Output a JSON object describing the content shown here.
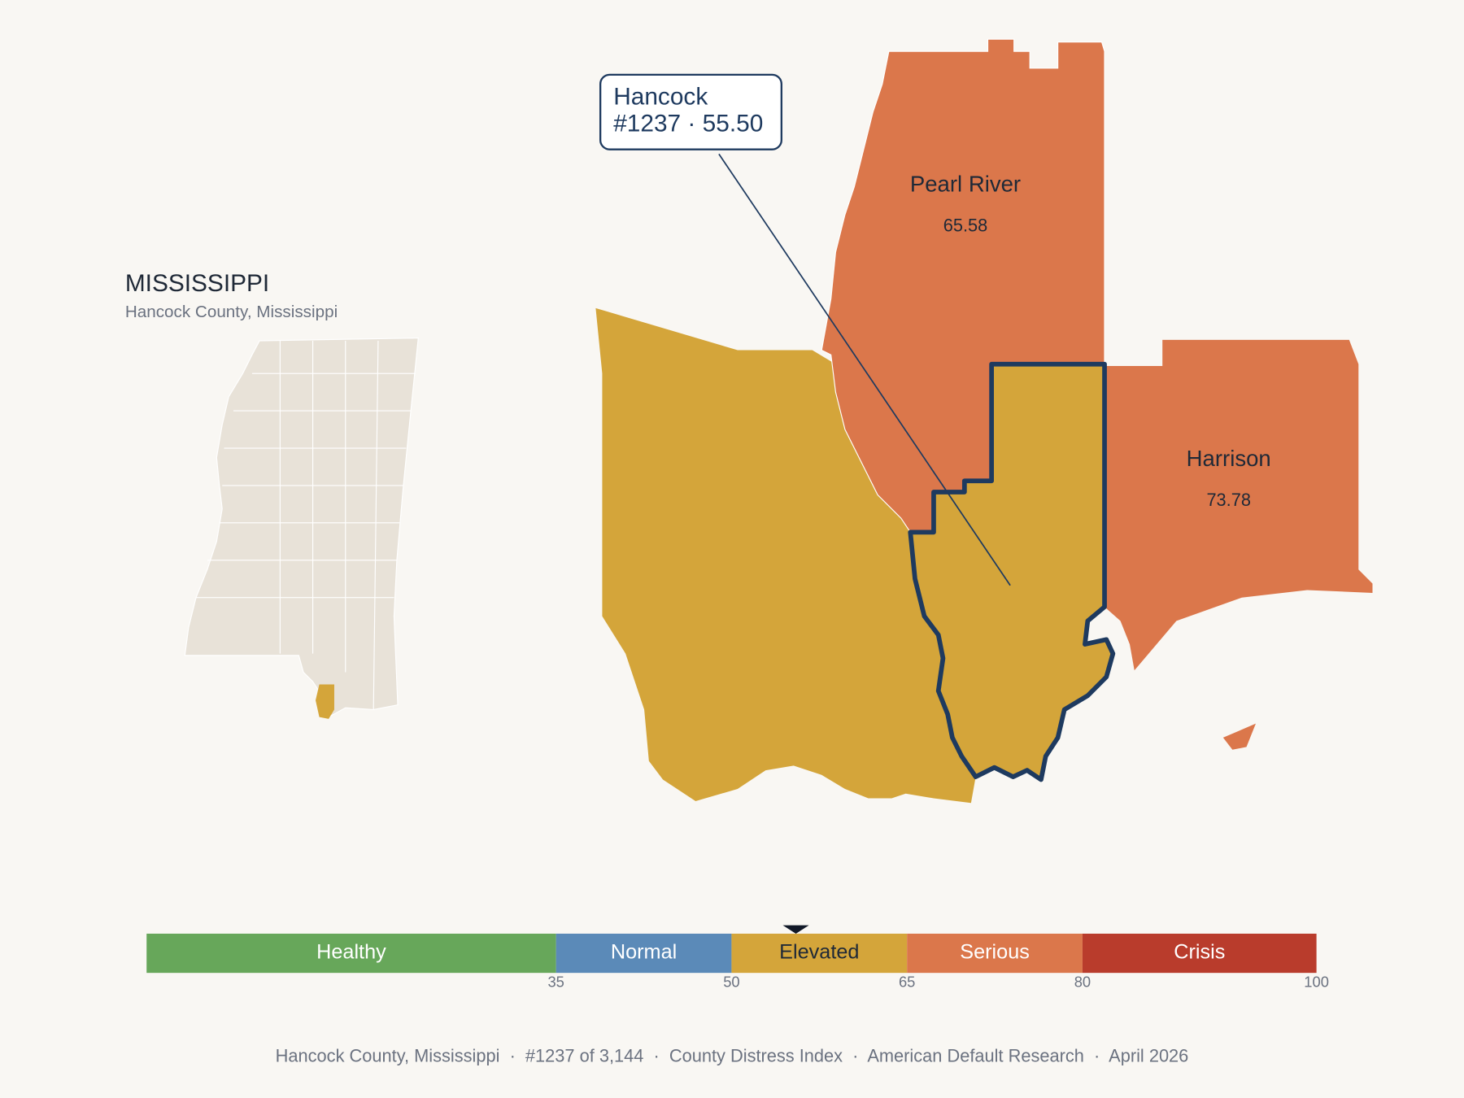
{
  "title": "MISSISSIPPI",
  "subtitle": "Hancock County, Mississippi",
  "counties": [
    {
      "name": "Hancock",
      "value": 55.5,
      "color": "#d4a53a"
    },
    {
      "name": "Pearl River",
      "value": 65.58,
      "color": "#db774b"
    },
    {
      "name": "Harrison",
      "value": 73.78,
      "color": "#db774b"
    }
  ],
  "callout": {
    "lines": [
      "Hancock",
      "#1237 · 55.50"
    ]
  },
  "legend": {
    "lim": [
      0,
      100
    ],
    "ticks": [
      35,
      50,
      65,
      80,
      100
    ],
    "bins": [
      {
        "label": "Healthy",
        "color": "#67a75a",
        "text_color": "#ffffff"
      },
      {
        "label": "Normal",
        "color": "#5b8ab8",
        "text_color": "#ffffff"
      },
      {
        "label": "Elevated",
        "color": "#d4a53a",
        "text_color": "#1f2937"
      },
      {
        "label": "Serious",
        "color": "#db774b",
        "text_color": "#ffffff"
      },
      {
        "label": "Crisis",
        "color": "#b93c2c",
        "text_color": "#ffffff"
      }
    ]
  },
  "footer": "Hancock County, Mississippi  ·  #1237 of 3,144  ·  County Distress Index  ·  American Default Research  ·  April 2026"
}
